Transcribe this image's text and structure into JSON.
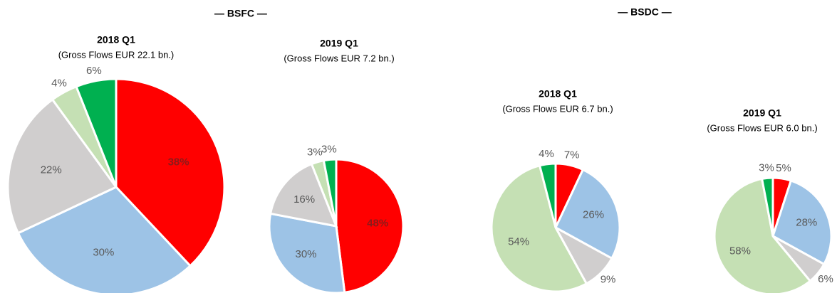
{
  "groups": [
    {
      "title": "— BSFC —"
    },
    {
      "title": "— BSDC —"
    }
  ],
  "chart_data": [
    {
      "type": "pie",
      "title": "2018 Q1",
      "subtitle": "(Gross Flows EUR 22.1 bn.)",
      "values": [
        38,
        30,
        22,
        4,
        6
      ],
      "value_labels": [
        "38%",
        "30%",
        "22%",
        "4%",
        "6%"
      ],
      "colors": [
        "#ff0000",
        "#9dc3e6",
        "#d0cece",
        "#c5e0b4",
        "#00b050"
      ]
    },
    {
      "type": "pie",
      "title": "2019 Q1",
      "subtitle": "(Gross Flows EUR 7.2 bn.)",
      "values": [
        48,
        30,
        16,
        3,
        3
      ],
      "value_labels": [
        "48%",
        "30%",
        "16%",
        "3%",
        "3%"
      ],
      "colors": [
        "#ff0000",
        "#9dc3e6",
        "#d0cece",
        "#c5e0b4",
        "#00b050"
      ]
    },
    {
      "type": "pie",
      "title": "2018 Q1",
      "subtitle": "(Gross Flows EUR 6.7 bn.)",
      "values": [
        7,
        26,
        9,
        54,
        4
      ],
      "value_labels": [
        "7%",
        "26%",
        "9%",
        "54%",
        "4%"
      ],
      "colors": [
        "#ff0000",
        "#9dc3e6",
        "#d0cece",
        "#c5e0b4",
        "#00b050"
      ]
    },
    {
      "type": "pie",
      "title": "2019 Q1",
      "subtitle": "(Gross Flows EUR 6.0 bn.)",
      "values": [
        5,
        28,
        6,
        58,
        3
      ],
      "value_labels": [
        "5%",
        "28%",
        "6%",
        "58%",
        "3%"
      ],
      "colors": [
        "#ff0000",
        "#9dc3e6",
        "#d0cece",
        "#c5e0b4",
        "#00b050"
      ]
    }
  ]
}
